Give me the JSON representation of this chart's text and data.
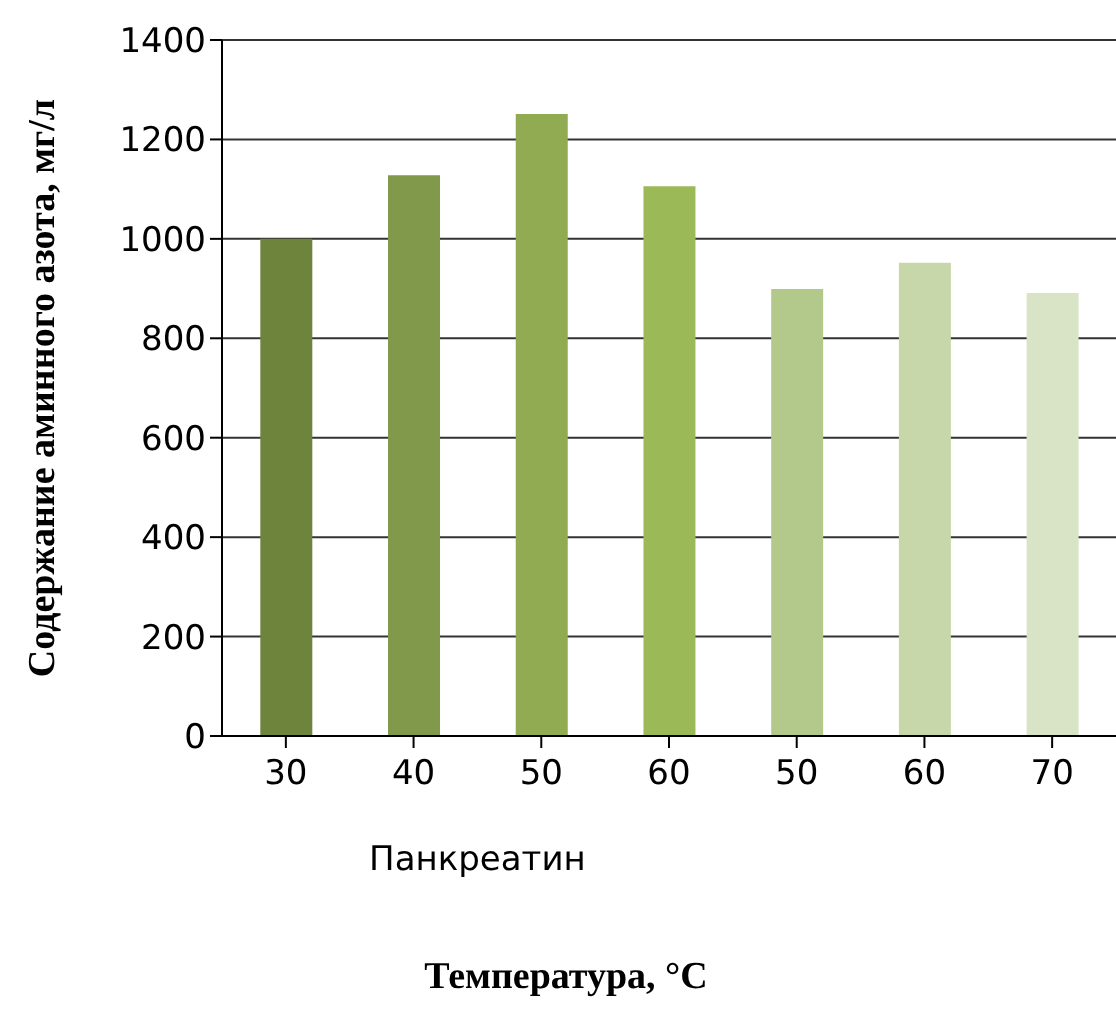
{
  "chart_data": {
    "type": "bar",
    "xlabel": "Температура, °С",
    "ylabel": "Содержание аминного азота, мг/л",
    "categories": [
      "30",
      "40",
      "50",
      "60",
      "50",
      "60",
      "70"
    ],
    "values": [
      1000,
      1128,
      1251,
      1106,
      899,
      952,
      891
    ],
    "colors": [
      "#6e833c",
      "#80994a",
      "#91ab52",
      "#9cb957",
      "#b3c98c",
      "#c8d7aa",
      "#d9e3c6"
    ],
    "ylim": [
      0,
      1400
    ],
    "yticks": [
      0,
      200,
      400,
      600,
      800,
      1000,
      1200,
      1400
    ],
    "grid": "y",
    "annotations": [
      "Панкреатин"
    ]
  }
}
